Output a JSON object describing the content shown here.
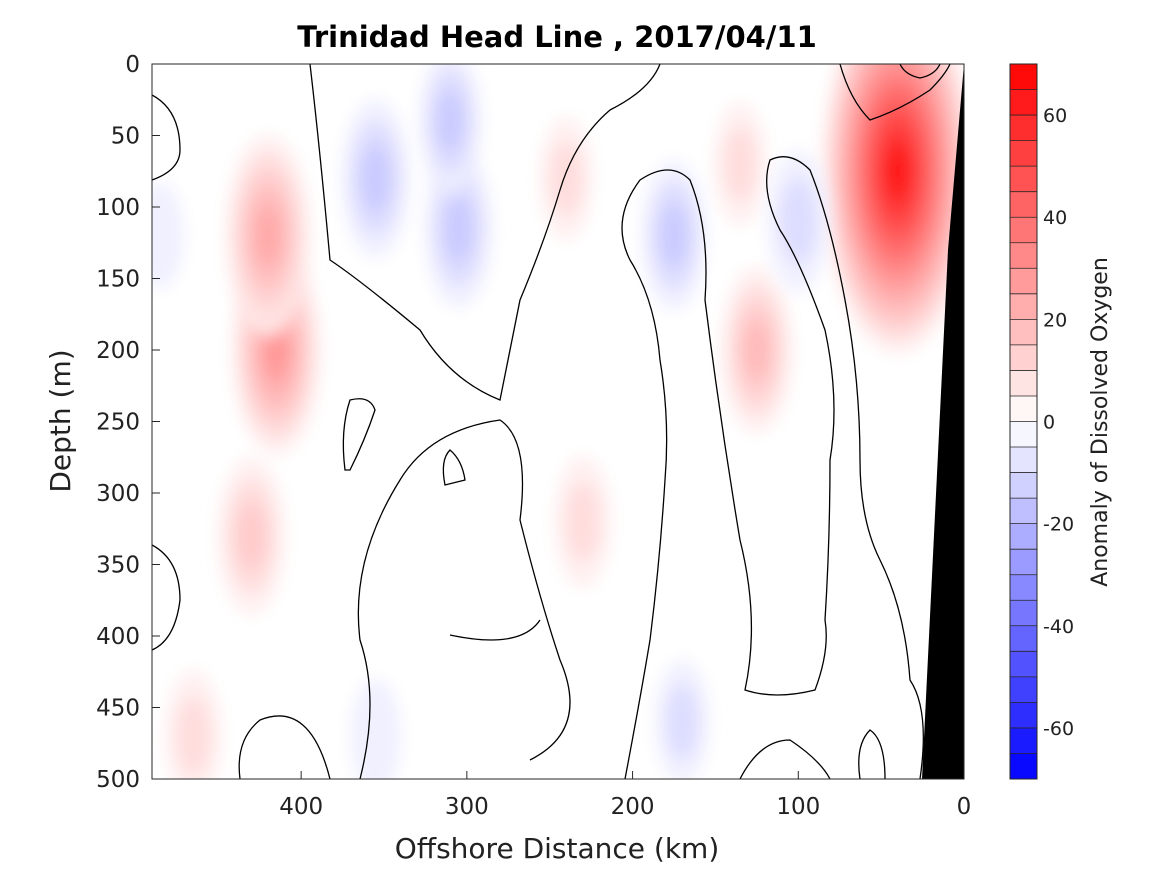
{
  "chart_data": {
    "type": "heatmap",
    "subtype": "filled-contour",
    "title": "Trinidad Head Line , 2017/04/11",
    "xlabel": "Offshore Distance (km)",
    "ylabel": "Depth (m)",
    "xlim": [
      490,
      0
    ],
    "x_direction": "reversed",
    "ylim": [
      0,
      500
    ],
    "y_direction": "depth-downward",
    "x_ticks": [
      400,
      300,
      200,
      100,
      0
    ],
    "y_ticks": [
      0,
      50,
      100,
      150,
      200,
      250,
      300,
      350,
      400,
      450,
      500
    ],
    "colorbar": {
      "label": "Anomaly of Dissolved Oxygen",
      "range": [
        -70,
        70
      ],
      "step": 5,
      "ticks": [
        60,
        40,
        20,
        0,
        -20,
        -40,
        -60
      ],
      "colormap": "blue-white-red",
      "positive_color": "#ff0000",
      "negative_color": "#0000ff",
      "zero_color": "#ffffff"
    },
    "zero_contour_color": "#000000",
    "bathymetry_color": "#000000",
    "features": [
      {
        "sign": "positive",
        "value": 65,
        "x_km": 40,
        "depth_m": 75
      },
      {
        "sign": "positive",
        "value": 30,
        "x_km": 415,
        "depth_m": 200
      },
      {
        "sign": "positive",
        "value": 28,
        "x_km": 420,
        "depth_m": 120
      },
      {
        "sign": "positive",
        "value": 20,
        "x_km": 125,
        "depth_m": 200
      },
      {
        "sign": "positive",
        "value": 18,
        "x_km": 430,
        "depth_m": 330
      },
      {
        "sign": "positive",
        "value": 12,
        "x_km": 230,
        "depth_m": 320
      },
      {
        "sign": "positive",
        "value": 10,
        "x_km": 240,
        "depth_m": 80
      },
      {
        "sign": "positive",
        "value": 10,
        "x_km": 135,
        "depth_m": 70
      },
      {
        "sign": "positive",
        "value": 12,
        "x_km": 465,
        "depth_m": 470
      },
      {
        "sign": "negative",
        "value": -18,
        "x_km": 355,
        "depth_m": 80
      },
      {
        "sign": "negative",
        "value": -18,
        "x_km": 305,
        "depth_m": 115
      },
      {
        "sign": "negative",
        "value": -15,
        "x_km": 310,
        "depth_m": 40
      },
      {
        "sign": "negative",
        "value": -16,
        "x_km": 175,
        "depth_m": 120
      },
      {
        "sign": "negative",
        "value": -14,
        "x_km": 100,
        "depth_m": 110
      },
      {
        "sign": "negative",
        "value": -10,
        "x_km": 170,
        "depth_m": 460
      },
      {
        "sign": "negative",
        "value": -8,
        "x_km": 355,
        "depth_m": 470
      },
      {
        "sign": "negative",
        "value": -6,
        "x_km": 485,
        "depth_m": 120
      }
    ]
  }
}
